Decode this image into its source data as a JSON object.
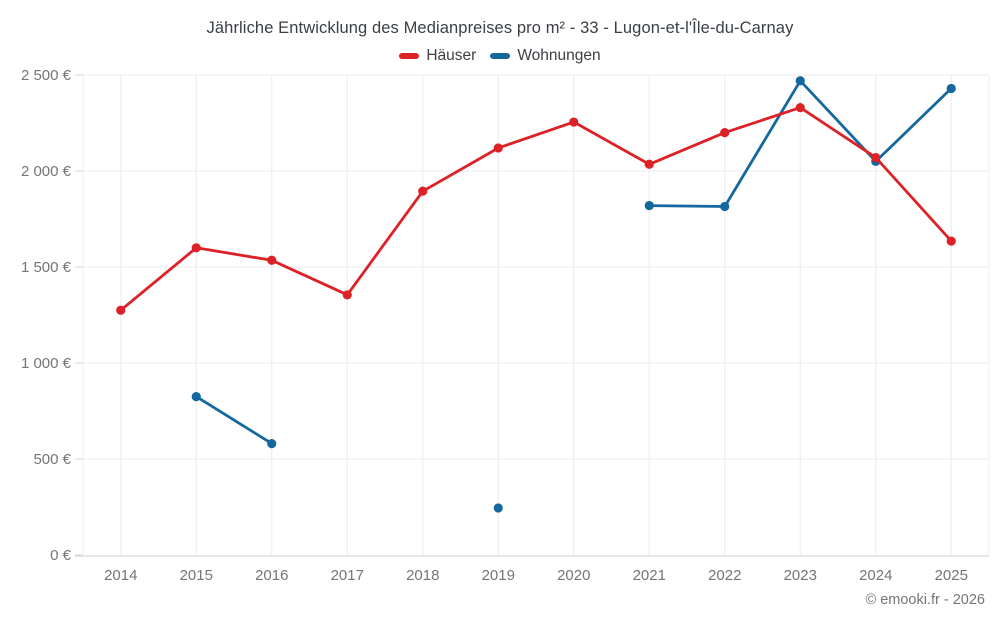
{
  "title": "Jährliche Entwicklung des Medianpreises pro m² - 33 - Lugon-et-l'Île-du-Carnay",
  "footer": {
    "copyright": "© emooki.fr - 2026"
  },
  "chart_data": {
    "type": "line",
    "title": "Jährliche Entwicklung des Medianpreises pro m² - 33 - Lugon-et-l'Île-du-Carnay",
    "x": [
      2014,
      2015,
      2016,
      2017,
      2018,
      2019,
      2020,
      2021,
      2022,
      2023,
      2024,
      2025
    ],
    "series": [
      {
        "name": "Häuser",
        "color": "#dd2227",
        "values": [
          1275,
          1600,
          1535,
          1355,
          1895,
          2120,
          2255,
          2035,
          2200,
          2330,
          2070,
          1635
        ]
      },
      {
        "name": "Wohnungen",
        "color": "#15689e",
        "values": [
          null,
          825,
          580,
          null,
          null,
          245,
          null,
          1820,
          1815,
          2470,
          2050,
          2430
        ]
      }
    ],
    "xlabel": "",
    "ylabel": "",
    "ylim": [
      0,
      2500
    ],
    "yticks": [
      {
        "value": 0,
        "label": "0 €"
      },
      {
        "value": 500,
        "label": "500 €"
      },
      {
        "value": 1000,
        "label": "1 000 €"
      },
      {
        "value": 1500,
        "label": "1 500 €"
      },
      {
        "value": 2000,
        "label": "2 000 €"
      },
      {
        "value": 2500,
        "label": "2 500 €"
      }
    ],
    "grid": true,
    "legend_position": "top",
    "currency": "€"
  },
  "colors": {
    "grid": "#ececec",
    "axis_line": "#d8d8d8",
    "tick": "#d0d0d0",
    "axis_text": "#757575",
    "title_text": "#3b4045",
    "background": "#ffffff"
  }
}
